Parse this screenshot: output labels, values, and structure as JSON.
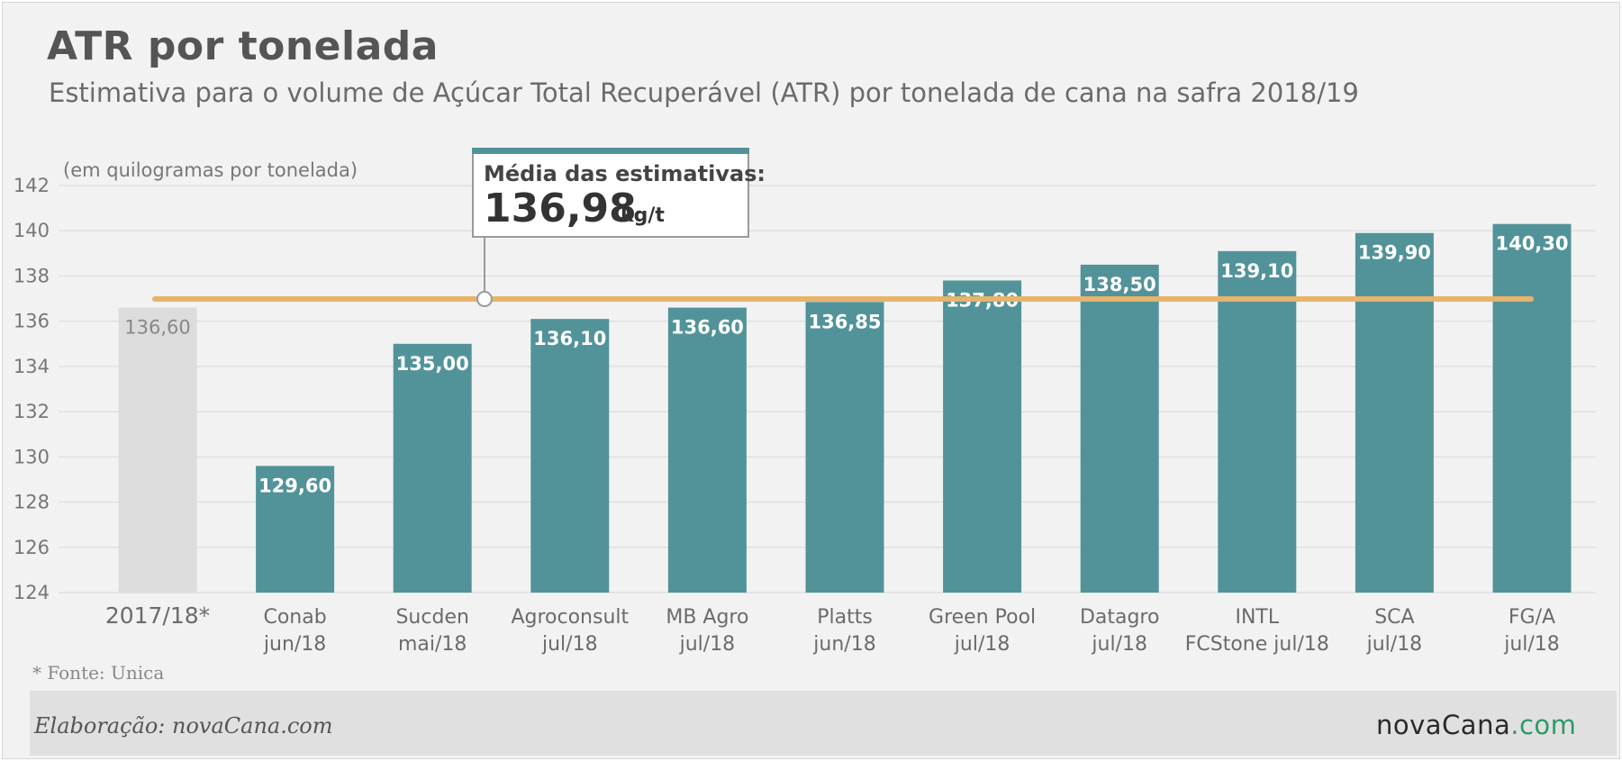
{
  "header": {
    "title": "ATR por tonelada",
    "subtitle": "Estimativa para o volume de Açúcar Total Recuperável (ATR) por tonelada de cana na safra 2018/19"
  },
  "footer": {
    "note": "* Fonte: Unica",
    "credit": "Elaboração: novaCana.com",
    "logo_main": "novaCana",
    "logo_suffix": ".com"
  },
  "callout": {
    "title": "Média das estimativas:",
    "value": "136,98",
    "unit": "kg/t"
  },
  "colors": {
    "bar": "#52939a",
    "bar_reference": "#dcdcdc",
    "average_line": "#e8b36a",
    "callout_border": "#52939a",
    "logo_accent": "#2e9a67"
  },
  "chart_data": {
    "type": "bar",
    "title": "ATR por tonelada",
    "subtitle": "Estimativa para o volume de Açúcar Total Recuperável (ATR) por tonelada de cana na safra 2018/19",
    "ylabel": "(em quilogramas por tonelada)",
    "ylim": [
      124,
      142
    ],
    "yticks": [
      124,
      126,
      128,
      130,
      132,
      134,
      136,
      138,
      140,
      142
    ],
    "grid": true,
    "categories": [
      [
        "2017/18*"
      ],
      [
        "Conab",
        "jun/18"
      ],
      [
        "Sucden",
        "mai/18"
      ],
      [
        "Agroconsult",
        "jul/18"
      ],
      [
        "MB Agro",
        "jul/18"
      ],
      [
        "Platts",
        "jun/18"
      ],
      [
        "Green Pool",
        "jul/18"
      ],
      [
        "Datagro",
        "jul/18"
      ],
      [
        "INTL",
        "FCStone jul/18"
      ],
      [
        "SCA",
        "jul/18"
      ],
      [
        "FG/A",
        "jul/18"
      ]
    ],
    "values": [
      136.6,
      129.6,
      135.0,
      136.1,
      136.6,
      136.85,
      137.8,
      138.5,
      139.1,
      139.9,
      140.3
    ],
    "value_labels": [
      "136,60",
      "129,60",
      "135,00",
      "136,10",
      "136,60",
      "136,85",
      "137,80",
      "138,50",
      "139,10",
      "139,90",
      "140,30"
    ],
    "reference_index": 0,
    "average": 136.98
  }
}
